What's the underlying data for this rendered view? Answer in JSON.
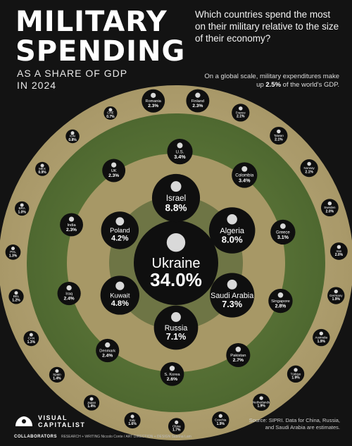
{
  "header": {
    "title_line1": "MILITARY",
    "title_line2": "SPENDING",
    "subtitle_line1": "AS A SHARE OF GDP",
    "subtitle_line2": "IN 2024",
    "question": "Which countries spend the most on their military relative to the size of their economy?",
    "global_note_prefix": "On a global scale, military expenditures make up ",
    "global_note_value": "2.5%",
    "global_note_suffix": " of the world's GDP."
  },
  "footer": {
    "logo_line1": "VISUAL",
    "logo_line2": "CAPITALIST",
    "collaborators_label": "COLLABORATORS",
    "collaborators_text": "RESEARCH + WRITING Niccolo Conte  /  ART DIRECTION + DESIGN Sabrina Lam",
    "source_line1": "Source: SIPRI. Data for China, Russia,",
    "source_line2": "and Saudi Arabia are estimates."
  },
  "colors": {
    "background": "#131313",
    "ring_tan": "#b6a57a",
    "ring_green": "#5c7434",
    "ring_mid": "#a39462",
    "bubble": "#0f0f0f",
    "bubble_text": "#ffffff"
  },
  "chart_data": {
    "type": "bubble",
    "unit": "% of GDP",
    "countries": [
      {
        "name": "Ukraine",
        "value": 34.0,
        "label": "34.0%",
        "ring": 0
      },
      {
        "name": "Israel",
        "value": 8.8,
        "label": "8.8%",
        "ring": 1
      },
      {
        "name": "Algeria",
        "value": 8.0,
        "label": "8.0%",
        "ring": 1
      },
      {
        "name": "Saudi Arabia",
        "value": 7.3,
        "label": "7.3%",
        "ring": 1
      },
      {
        "name": "Russia",
        "value": 7.1,
        "label": "7.1%",
        "ring": 1
      },
      {
        "name": "Kuwait",
        "value": 4.8,
        "label": "4.8%",
        "ring": 1
      },
      {
        "name": "Poland",
        "value": 4.2,
        "label": "4.2%",
        "ring": 1
      },
      {
        "name": "U.S.",
        "value": 3.4,
        "label": "3.4%",
        "ring": 2
      },
      {
        "name": "Colombia",
        "value": 3.4,
        "label": "3.4%",
        "ring": 2
      },
      {
        "name": "Greece",
        "value": 3.1,
        "label": "3.1%",
        "ring": 2
      },
      {
        "name": "Singapore",
        "value": 2.8,
        "label": "2.8%",
        "ring": 2
      },
      {
        "name": "Pakistan",
        "value": 2.7,
        "label": "2.7%",
        "ring": 2
      },
      {
        "name": "S. Korea",
        "value": 2.6,
        "label": "2.6%",
        "ring": 2
      },
      {
        "name": "Denmark",
        "value": 2.4,
        "label": "2.4%",
        "ring": 2
      },
      {
        "name": "Iraq",
        "value": 2.4,
        "label": "2.4%",
        "ring": 2
      },
      {
        "name": "India",
        "value": 2.3,
        "label": "2.3%",
        "ring": 2
      },
      {
        "name": "UK",
        "value": 2.3,
        "label": "2.3%",
        "ring": 2
      },
      {
        "name": "Romania",
        "value": 2.3,
        "label": "2.3%",
        "ring": 3
      },
      {
        "name": "Finland",
        "value": 2.3,
        "label": "2.3%",
        "ring": 3
      },
      {
        "name": "France",
        "value": 2.1,
        "label": "2.1%",
        "ring": 3
      },
      {
        "name": "Taiwan",
        "value": 2.1,
        "label": "2.1%",
        "ring": 3
      },
      {
        "name": "Norway",
        "value": 2.1,
        "label": "2.1%",
        "ring": 3
      },
      {
        "name": "Sweden",
        "value": 2.0,
        "label": "2.0%",
        "ring": 3
      },
      {
        "name": "Iran",
        "value": 2.0,
        "label": "2.0%",
        "ring": 3
      },
      {
        "name": "Germany",
        "value": 1.9,
        "label": "1.9%",
        "ring": 3
      },
      {
        "name": "Australia",
        "value": 1.9,
        "label": "1.9%",
        "ring": 3
      },
      {
        "name": "Türkiye",
        "value": 1.9,
        "label": "1.9%",
        "ring": 3
      },
      {
        "name": "Netherlands",
        "value": 1.9,
        "label": "1.9%",
        "ring": 3
      },
      {
        "name": "Czechia",
        "value": 1.9,
        "label": "1.9%",
        "ring": 3
      },
      {
        "name": "China",
        "value": 1.7,
        "label": "1.7%",
        "ring": 3
      },
      {
        "name": "Italy",
        "value": 1.6,
        "label": "1.6%",
        "ring": 3
      },
      {
        "name": "Japan",
        "value": 1.4,
        "label": "1.4%",
        "ring": 3
      },
      {
        "name": "Spain",
        "value": 1.4,
        "label": "1.4%",
        "ring": 3
      },
      {
        "name": "CAN",
        "value": 1.3,
        "label": "1.3%",
        "ring": 3
      },
      {
        "name": "BEL",
        "value": 1.2,
        "label": "1.2%",
        "ring": 3
      },
      {
        "name": "PHL",
        "value": 1.3,
        "label": "1.3%",
        "ring": 3
      },
      {
        "name": "BRA",
        "value": 1.0,
        "label": "1.0%",
        "ring": 3
      },
      {
        "name": "MEX",
        "value": 0.9,
        "label": "0.9%",
        "ring": 3
      },
      {
        "name": "IDN",
        "value": 0.8,
        "label": "0.8%",
        "ring": 3
      },
      {
        "name": "CHE",
        "value": 0.7,
        "label": "0.7%",
        "ring": 3
      }
    ],
    "title": "MILITARY SPENDING AS A SHARE OF GDP IN 2024"
  }
}
